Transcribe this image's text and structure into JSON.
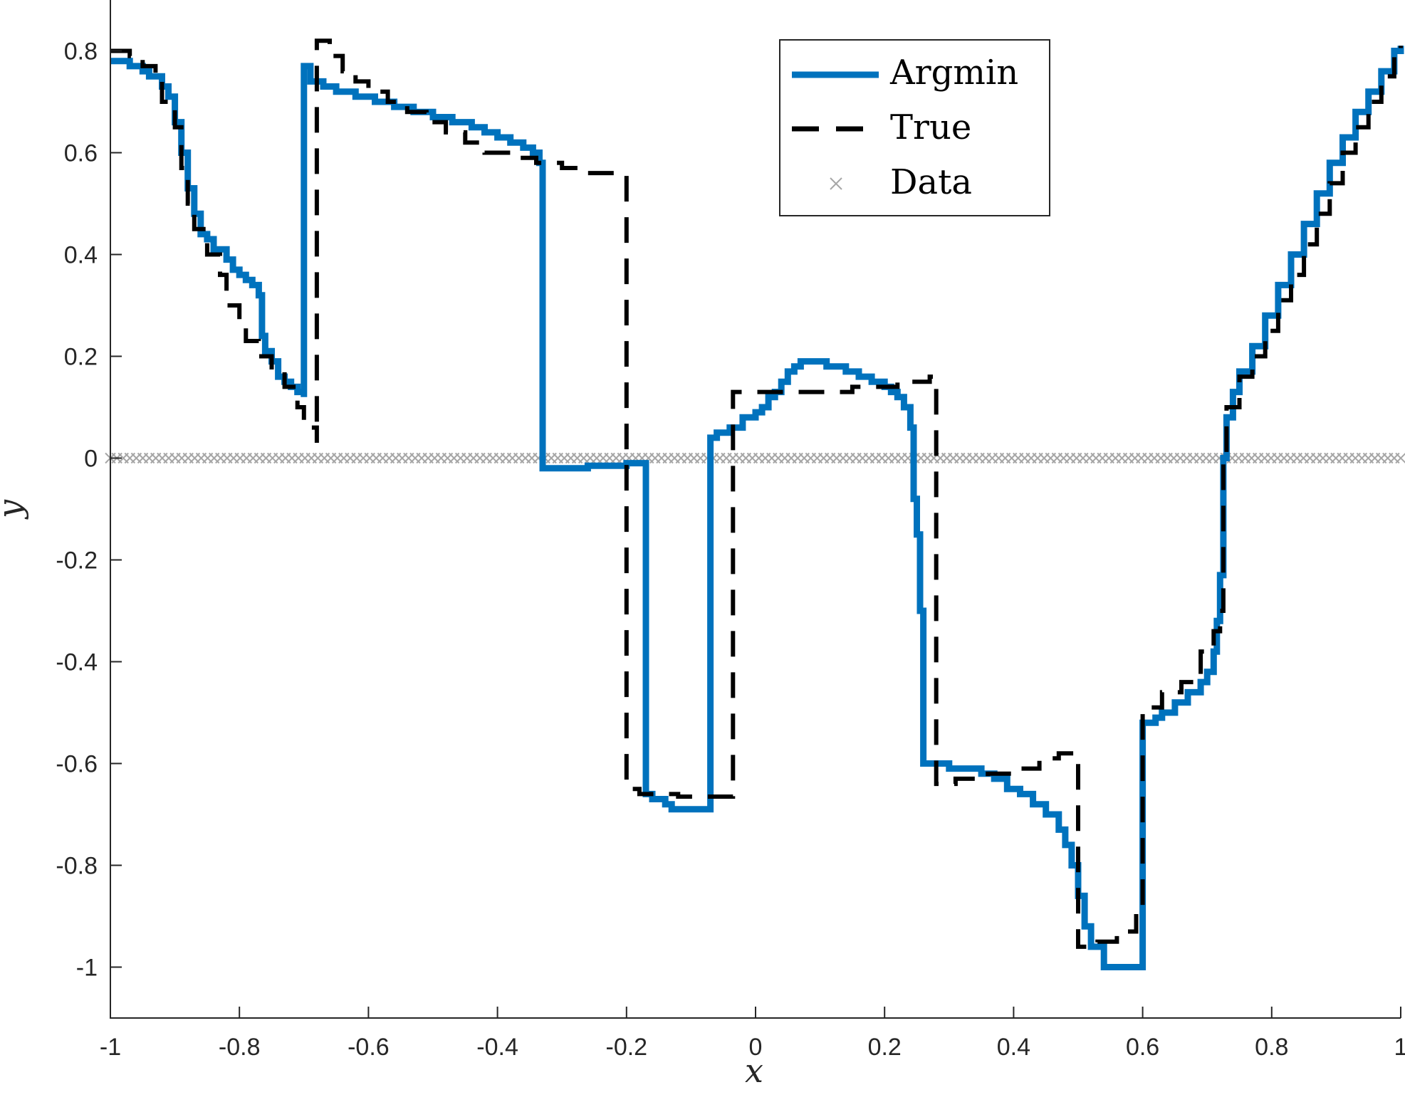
{
  "chart_data": {
    "type": "line",
    "title": "",
    "xlabel": "x",
    "ylabel": "y",
    "xlim": [
      -1,
      1
    ],
    "ylim": [
      -1.1,
      0.9
    ],
    "x_ticks": [
      -1,
      -0.8,
      -0.6,
      -0.4,
      -0.2,
      0,
      0.2,
      0.4,
      0.6,
      0.8,
      1
    ],
    "x_tick_labels": [
      "-1",
      "-0.8",
      "-0.6",
      "-0.4",
      "-0.2",
      "0",
      "0.2",
      "0.4",
      "0.6",
      "0.8",
      "1"
    ],
    "y_ticks": [
      0.8,
      0.6,
      0.4,
      0.2,
      0,
      -0.2,
      -0.4,
      -0.6,
      -0.8,
      -1
    ],
    "y_tick_labels": [
      "0.8",
      "0.6",
      "0.4",
      "0.2",
      "0",
      "-0.2",
      "-0.4",
      "-0.6",
      "-0.8",
      "-1"
    ],
    "grid": false,
    "legend_position": "top-right",
    "series": [
      {
        "name": "Argmin",
        "style": "solid-step",
        "color": "#0072BD",
        "points": [
          [
            -1.0,
            0.78
          ],
          [
            -0.98,
            0.78
          ],
          [
            -0.97,
            0.77
          ],
          [
            -0.95,
            0.76
          ],
          [
            -0.94,
            0.75
          ],
          [
            -0.92,
            0.73
          ],
          [
            -0.91,
            0.71
          ],
          [
            -0.9,
            0.66
          ],
          [
            -0.89,
            0.6
          ],
          [
            -0.88,
            0.53
          ],
          [
            -0.87,
            0.48
          ],
          [
            -0.86,
            0.44
          ],
          [
            -0.85,
            0.43
          ],
          [
            -0.84,
            0.41
          ],
          [
            -0.82,
            0.39
          ],
          [
            -0.81,
            0.37
          ],
          [
            -0.8,
            0.36
          ],
          [
            -0.79,
            0.35
          ],
          [
            -0.78,
            0.34
          ],
          [
            -0.77,
            0.32
          ],
          [
            -0.765,
            0.24
          ],
          [
            -0.76,
            0.21
          ],
          [
            -0.75,
            0.19
          ],
          [
            -0.74,
            0.16
          ],
          [
            -0.73,
            0.15
          ],
          [
            -0.72,
            0.14
          ],
          [
            -0.71,
            0.13
          ],
          [
            -0.7,
            0.12
          ],
          [
            -0.7,
            0.77
          ],
          [
            -0.69,
            0.74
          ],
          [
            -0.67,
            0.73
          ],
          [
            -0.65,
            0.72
          ],
          [
            -0.62,
            0.71
          ],
          [
            -0.59,
            0.7
          ],
          [
            -0.56,
            0.69
          ],
          [
            -0.53,
            0.68
          ],
          [
            -0.5,
            0.67
          ],
          [
            -0.47,
            0.66
          ],
          [
            -0.44,
            0.65
          ],
          [
            -0.42,
            0.64
          ],
          [
            -0.4,
            0.63
          ],
          [
            -0.38,
            0.62
          ],
          [
            -0.36,
            0.61
          ],
          [
            -0.345,
            0.6
          ],
          [
            -0.335,
            0.58
          ],
          [
            -0.33,
            0.58
          ],
          [
            -0.33,
            -0.02
          ],
          [
            -0.26,
            -0.02
          ],
          [
            -0.26,
            -0.015
          ],
          [
            -0.2,
            -0.015
          ],
          [
            -0.2,
            -0.01
          ],
          [
            -0.17,
            -0.01
          ],
          [
            -0.17,
            -0.66
          ],
          [
            -0.16,
            -0.67
          ],
          [
            -0.14,
            -0.68
          ],
          [
            -0.13,
            -0.69
          ],
          [
            -0.07,
            -0.69
          ],
          [
            -0.07,
            0.04
          ],
          [
            -0.06,
            0.05
          ],
          [
            -0.04,
            0.06
          ],
          [
            -0.02,
            0.08
          ],
          [
            0.0,
            0.09
          ],
          [
            0.01,
            0.1
          ],
          [
            0.02,
            0.12
          ],
          [
            0.03,
            0.13
          ],
          [
            0.04,
            0.15
          ],
          [
            0.05,
            0.17
          ],
          [
            0.06,
            0.18
          ],
          [
            0.07,
            0.19
          ],
          [
            0.1,
            0.19
          ],
          [
            0.11,
            0.18
          ],
          [
            0.14,
            0.17
          ],
          [
            0.16,
            0.16
          ],
          [
            0.18,
            0.15
          ],
          [
            0.2,
            0.14
          ],
          [
            0.21,
            0.13
          ],
          [
            0.22,
            0.12
          ],
          [
            0.23,
            0.1
          ],
          [
            0.24,
            0.06
          ],
          [
            0.245,
            -0.08
          ],
          [
            0.25,
            -0.15
          ],
          [
            0.255,
            -0.3
          ],
          [
            0.26,
            -0.6
          ],
          [
            0.28,
            -0.6
          ],
          [
            0.3,
            -0.61
          ],
          [
            0.35,
            -0.62
          ],
          [
            0.37,
            -0.63
          ],
          [
            0.39,
            -0.65
          ],
          [
            0.41,
            -0.66
          ],
          [
            0.43,
            -0.68
          ],
          [
            0.45,
            -0.7
          ],
          [
            0.47,
            -0.73
          ],
          [
            0.48,
            -0.76
          ],
          [
            0.49,
            -0.8
          ],
          [
            0.5,
            -0.86
          ],
          [
            0.51,
            -0.92
          ],
          [
            0.52,
            -0.96
          ],
          [
            0.54,
            -1.0
          ],
          [
            0.6,
            -1.0
          ],
          [
            0.6,
            -0.52
          ],
          [
            0.62,
            -0.51
          ],
          [
            0.63,
            -0.5
          ],
          [
            0.65,
            -0.48
          ],
          [
            0.67,
            -0.46
          ],
          [
            0.69,
            -0.44
          ],
          [
            0.7,
            -0.42
          ],
          [
            0.71,
            -0.38
          ],
          [
            0.715,
            -0.32
          ],
          [
            0.72,
            -0.23
          ],
          [
            0.725,
            0.0
          ],
          [
            0.73,
            0.08
          ],
          [
            0.74,
            0.13
          ],
          [
            0.75,
            0.17
          ],
          [
            0.77,
            0.22
          ],
          [
            0.79,
            0.28
          ],
          [
            0.81,
            0.34
          ],
          [
            0.83,
            0.4
          ],
          [
            0.85,
            0.46
          ],
          [
            0.87,
            0.52
          ],
          [
            0.89,
            0.58
          ],
          [
            0.91,
            0.63
          ],
          [
            0.93,
            0.68
          ],
          [
            0.95,
            0.72
          ],
          [
            0.97,
            0.76
          ],
          [
            0.99,
            0.8
          ],
          [
            1.0,
            0.81
          ]
        ]
      },
      {
        "name": "True",
        "style": "dashed-step",
        "color": "#000000",
        "points": [
          [
            -1.0,
            0.8
          ],
          [
            -0.97,
            0.79
          ],
          [
            -0.95,
            0.77
          ],
          [
            -0.93,
            0.74
          ],
          [
            -0.92,
            0.7
          ],
          [
            -0.9,
            0.65
          ],
          [
            -0.89,
            0.57
          ],
          [
            -0.88,
            0.5
          ],
          [
            -0.87,
            0.45
          ],
          [
            -0.85,
            0.4
          ],
          [
            -0.83,
            0.36
          ],
          [
            -0.82,
            0.3
          ],
          [
            -0.8,
            0.27
          ],
          [
            -0.79,
            0.23
          ],
          [
            -0.77,
            0.2
          ],
          [
            -0.75,
            0.17
          ],
          [
            -0.73,
            0.14
          ],
          [
            -0.71,
            0.1
          ],
          [
            -0.7,
            0.06
          ],
          [
            -0.68,
            0.03
          ],
          [
            -0.68,
            0.82
          ],
          [
            -0.66,
            0.79
          ],
          [
            -0.64,
            0.76
          ],
          [
            -0.62,
            0.74
          ],
          [
            -0.6,
            0.72
          ],
          [
            -0.57,
            0.7
          ],
          [
            -0.54,
            0.68
          ],
          [
            -0.51,
            0.66
          ],
          [
            -0.48,
            0.64
          ],
          [
            -0.45,
            0.62
          ],
          [
            -0.42,
            0.6
          ],
          [
            -0.38,
            0.59
          ],
          [
            -0.34,
            0.58
          ],
          [
            -0.3,
            0.57
          ],
          [
            -0.26,
            0.56
          ],
          [
            -0.2,
            0.55
          ],
          [
            -0.2,
            -0.65
          ],
          [
            -0.18,
            -0.66
          ],
          [
            -0.12,
            -0.665
          ],
          [
            -0.035,
            -0.665
          ],
          [
            -0.035,
            0.13
          ],
          [
            0.05,
            0.13
          ],
          [
            0.15,
            0.14
          ],
          [
            0.22,
            0.15
          ],
          [
            0.27,
            0.16
          ],
          [
            0.28,
            0.16
          ],
          [
            0.28,
            -0.64
          ],
          [
            0.31,
            -0.63
          ],
          [
            0.36,
            -0.62
          ],
          [
            0.4,
            -0.61
          ],
          [
            0.44,
            -0.59
          ],
          [
            0.47,
            -0.58
          ],
          [
            0.5,
            -0.58
          ],
          [
            0.5,
            -0.96
          ],
          [
            0.53,
            -0.95
          ],
          [
            0.56,
            -0.93
          ],
          [
            0.59,
            -0.9
          ],
          [
            0.6,
            -0.88
          ],
          [
            0.6,
            -0.49
          ],
          [
            0.63,
            -0.46
          ],
          [
            0.66,
            -0.44
          ],
          [
            0.69,
            -0.38
          ],
          [
            0.71,
            -0.34
          ],
          [
            0.72,
            -0.3
          ],
          [
            0.725,
            0.0
          ],
          [
            0.73,
            0.1
          ],
          [
            0.75,
            0.16
          ],
          [
            0.77,
            0.2
          ],
          [
            0.79,
            0.25
          ],
          [
            0.81,
            0.31
          ],
          [
            0.83,
            0.36
          ],
          [
            0.85,
            0.42
          ],
          [
            0.87,
            0.48
          ],
          [
            0.89,
            0.54
          ],
          [
            0.91,
            0.6
          ],
          [
            0.93,
            0.65
          ],
          [
            0.95,
            0.7
          ],
          [
            0.97,
            0.75
          ],
          [
            0.99,
            0.79
          ],
          [
            1.0,
            0.81
          ]
        ]
      },
      {
        "name": "Data",
        "style": "marker-x",
        "color": "#A6A6A6",
        "x_start": -1,
        "x_end": 1,
        "count": 200,
        "y": 0
      }
    ]
  }
}
